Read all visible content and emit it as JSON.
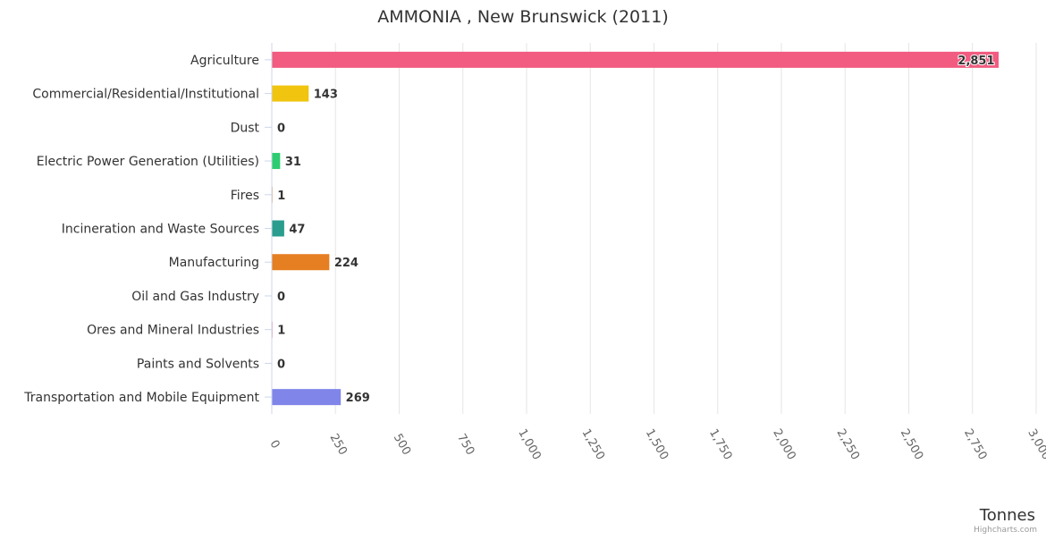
{
  "chart_data": {
    "type": "bar",
    "orientation": "horizontal",
    "title": "AMMONIA , New Brunswick (2011)",
    "xlabel": "Tonnes",
    "ylabel": "",
    "xlim": [
      0,
      3000
    ],
    "ticks": [
      "0",
      "250",
      "500",
      "750",
      "1,000",
      "1,250",
      "1,500",
      "1,750",
      "2,000",
      "2,250",
      "2,500",
      "2,750",
      "3,000"
    ],
    "tick_values": [
      0,
      250,
      500,
      750,
      1000,
      1250,
      1500,
      1750,
      2000,
      2250,
      2500,
      2750,
      3000
    ],
    "grid": true,
    "categories": [
      "Agriculture",
      "Commercial/Residential/Institutional",
      "Dust",
      "Electric Power Generation (Utilities)",
      "Fires",
      "Incineration and Waste Sources",
      "Manufacturing",
      "Oil and Gas Industry",
      "Ores and Mineral Industries",
      "Paints and Solvents",
      "Transportation and Mobile Equipment"
    ],
    "values": [
      2851,
      143,
      0,
      31,
      1,
      47,
      224,
      0,
      1,
      0,
      269
    ],
    "data_labels": [
      "2,851",
      "143",
      "0",
      "31",
      "1",
      "47",
      "224",
      "0",
      "1",
      "0",
      "269"
    ],
    "colors": [
      "#f15c80",
      "#f1c40f",
      "#9b59b6",
      "#2ecc71",
      "#e67e22",
      "#2a9d8f",
      "#e67e22",
      "#7f8c8d",
      "#f15c80",
      "#3498db",
      "#8085e9"
    ],
    "credit": "Highcharts.com"
  }
}
